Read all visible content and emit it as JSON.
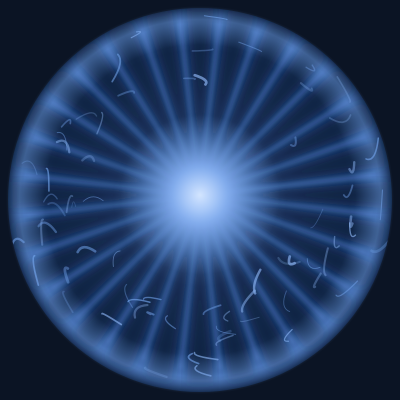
{
  "image": {
    "subject": "glowing-blue-energy-orb",
    "colors": {
      "background": "#0b1424",
      "orb_dark": "#0e2142",
      "orb_mid": "#2f5b9e",
      "orb_light": "#6f9fe6",
      "core": "#9ec4ff",
      "highlight": "#d6e7ff"
    },
    "rays": 28
  }
}
